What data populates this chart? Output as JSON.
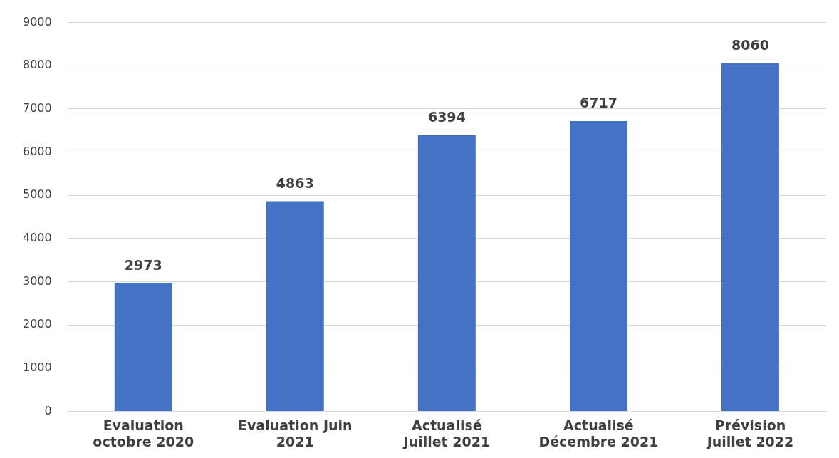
{
  "chart_data": {
    "type": "bar",
    "categories": [
      "Evaluation octobre 2020",
      "Evaluation Juin 2021",
      "Actualisé Juillet 2021",
      "Actualisé Décembre 2021",
      "Prévision Juillet 2022"
    ],
    "values": [
      2973,
      4863,
      6394,
      6717,
      8060
    ],
    "color": "#4472c4",
    "ylim": [
      0,
      9000
    ],
    "yticks": [
      0,
      1000,
      2000,
      3000,
      4000,
      5000,
      6000,
      7000,
      8000,
      9000
    ],
    "grid": "y",
    "data_labels": true
  }
}
